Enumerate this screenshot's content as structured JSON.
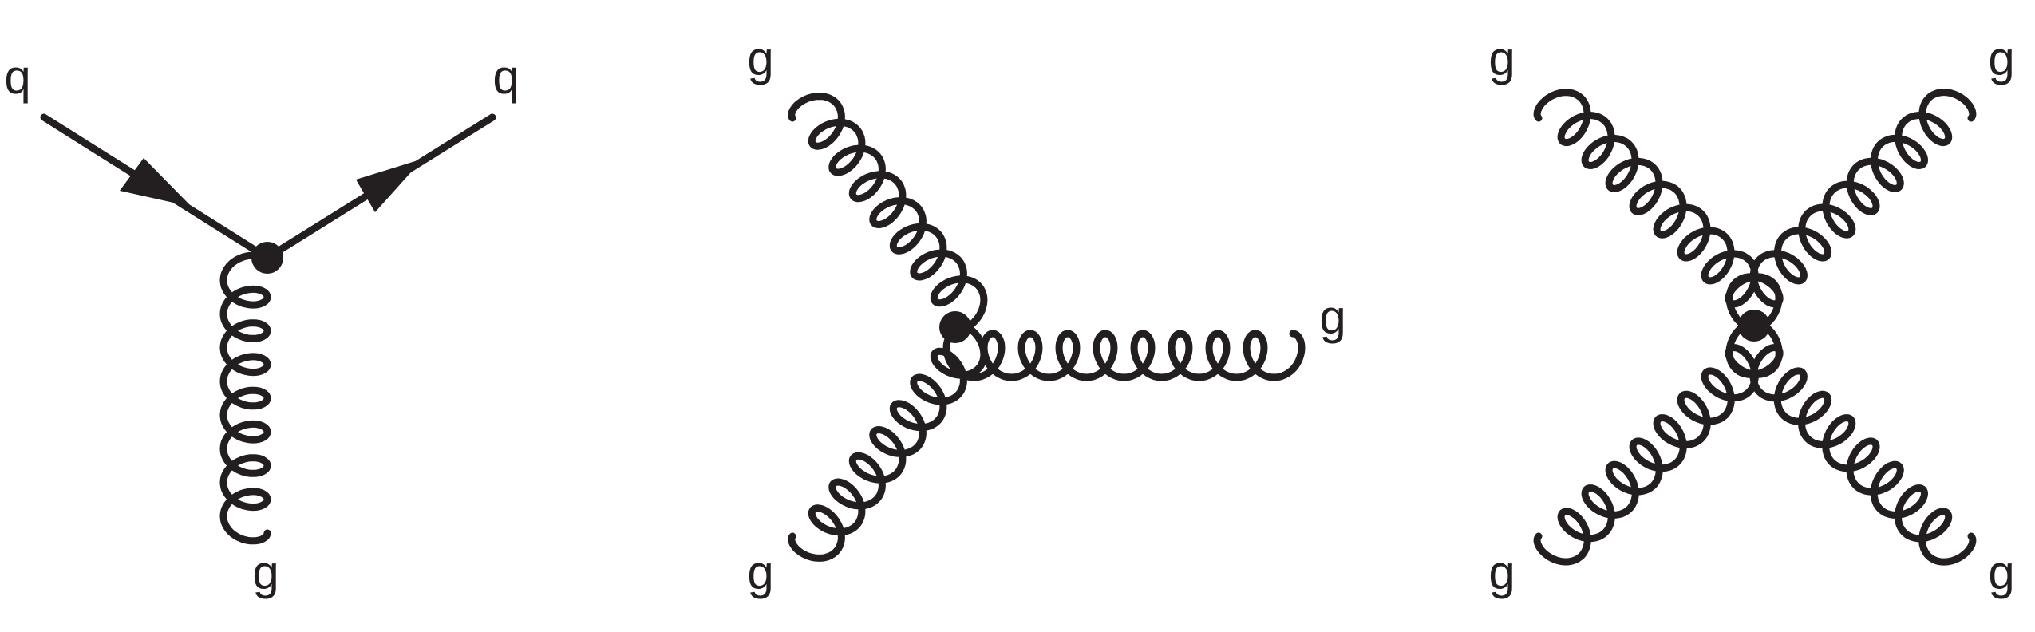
{
  "diagrams": [
    {
      "type": "quark-quark-gluon vertex",
      "labels": {
        "top_left": "q",
        "top_right": "q",
        "bottom": "g"
      }
    },
    {
      "type": "three-gluon vertex",
      "labels": {
        "top": "g",
        "bottom": "g",
        "right": "g"
      }
    },
    {
      "type": "four-gluon vertex",
      "labels": {
        "top_left": "g",
        "top_right": "g",
        "bottom_left": "g",
        "bottom_right": "g"
      }
    }
  ],
  "colors": {
    "ink": "#231f20",
    "background": "#ffffff"
  },
  "icons": [
    "quark-line",
    "gluon-line",
    "vertex-dot",
    "arrow-head"
  ]
}
